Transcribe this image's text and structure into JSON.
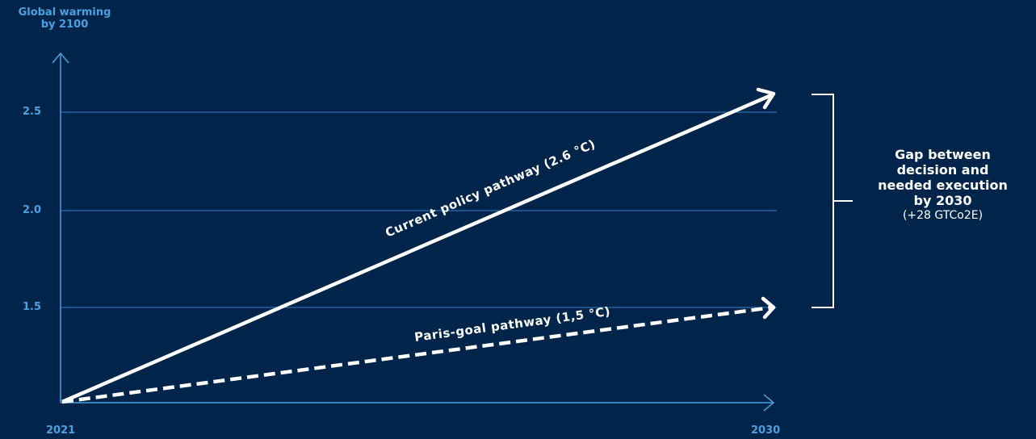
{
  "colors": {
    "background": "#00244a",
    "axis": "#4aa0e0",
    "line": "#ffffff"
  },
  "chart_data": {
    "type": "line",
    "ylabel_lines": [
      "Global warming",
      "by 2100"
    ],
    "x_ticks": [
      "2021",
      "2030"
    ],
    "y_ticks": [
      "1.5",
      "2.0",
      "2.5"
    ],
    "grid": true,
    "series": [
      {
        "name": "Current policy pathway (2.6 °C)",
        "style": "solid",
        "points": [
          [
            "2021",
            1.0
          ],
          [
            "2030",
            2.6
          ]
        ]
      },
      {
        "name": "Paris-goal pathway (1,5 °C)",
        "style": "dashed",
        "points": [
          [
            "2021",
            1.0
          ],
          [
            "2030",
            1.5
          ]
        ]
      }
    ]
  },
  "gap": {
    "bold_lines": [
      "Gap between",
      "decision and",
      "needed execution",
      "by 2030"
    ],
    "note": "(+28 GTCo2E)"
  }
}
